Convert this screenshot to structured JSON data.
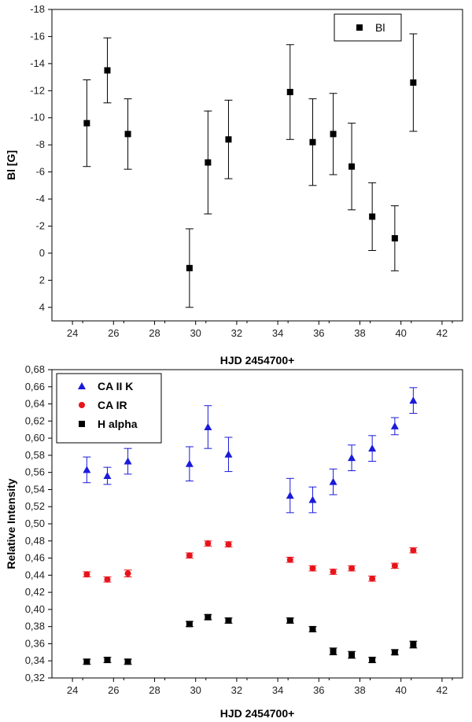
{
  "chart_data": [
    {
      "type": "scatter",
      "panel": "top",
      "title": "",
      "xlabel": "HJD 2454700+",
      "ylabel": "Bl [G]",
      "xlim": [
        23,
        43
      ],
      "ylim": [
        5,
        -18
      ],
      "y_inverted": true,
      "xticks": [
        24,
        26,
        28,
        30,
        32,
        34,
        36,
        38,
        40,
        42
      ],
      "yticks": [
        4,
        2,
        0,
        -2,
        -4,
        -6,
        -8,
        -10,
        -12,
        -14,
        -16,
        -18
      ],
      "legend_position": "top-right",
      "series": [
        {
          "name": "Bl",
          "marker": "square",
          "color": "#000000",
          "x": [
            24.7,
            25.7,
            26.7,
            29.7,
            30.6,
            31.6,
            34.6,
            35.7,
            36.7,
            37.6,
            38.6,
            39.7,
            40.6
          ],
          "y": [
            -9.6,
            -13.5,
            -8.8,
            1.1,
            -6.7,
            -8.4,
            -11.9,
            -8.2,
            -8.8,
            -6.4,
            -2.7,
            -1.1,
            -12.6
          ],
          "err": [
            3.2,
            2.4,
            2.6,
            2.9,
            3.8,
            2.9,
            3.5,
            3.2,
            3.0,
            3.2,
            2.5,
            2.4,
            3.6
          ]
        }
      ]
    },
    {
      "type": "scatter",
      "panel": "bottom",
      "title": "",
      "xlabel": "HJD 2454700+",
      "ylabel": "Relative Intensity",
      "xlim": [
        23,
        43
      ],
      "ylim": [
        0.32,
        0.68
      ],
      "xticks": [
        24,
        26,
        28,
        30,
        32,
        34,
        36,
        38,
        40,
        42
      ],
      "yticks": [
        "0,32",
        "0,34",
        "0,36",
        "0,38",
        "0,40",
        "0,42",
        "0,44",
        "0,46",
        "0,48",
        "0,50",
        "0,52",
        "0,54",
        "0,56",
        "0,58",
        "0,60",
        "0,62",
        "0,64",
        "0,66",
        "0,68"
      ],
      "legend_position": "top-left",
      "series": [
        {
          "name": "CA II K",
          "marker": "triangle",
          "color": "#1a1adb",
          "x": [
            24.7,
            25.7,
            26.7,
            29.7,
            30.6,
            31.6,
            34.6,
            35.7,
            36.7,
            37.6,
            38.6,
            39.7,
            40.6
          ],
          "y": [
            0.563,
            0.556,
            0.573,
            0.57,
            0.613,
            0.581,
            0.533,
            0.528,
            0.549,
            0.577,
            0.588,
            0.614,
            0.644
          ],
          "err": [
            0.015,
            0.01,
            0.015,
            0.02,
            0.025,
            0.02,
            0.02,
            0.015,
            0.015,
            0.015,
            0.015,
            0.01,
            0.015
          ]
        },
        {
          "name": "CA IR",
          "marker": "circle",
          "color": "#e8141c",
          "x": [
            24.7,
            25.7,
            26.7,
            29.7,
            30.6,
            31.6,
            34.6,
            35.7,
            36.7,
            37.6,
            38.6,
            39.7,
            40.6
          ],
          "y": [
            0.441,
            0.435,
            0.442,
            0.463,
            0.477,
            0.476,
            0.458,
            0.448,
            0.444,
            0.448,
            0.436,
            0.451,
            0.469
          ],
          "err": [
            0.003,
            0.003,
            0.004,
            0.003,
            0.003,
            0.003,
            0.003,
            0.003,
            0.003,
            0.003,
            0.003,
            0.003,
            0.003
          ]
        },
        {
          "name": "H alpha",
          "marker": "square",
          "color": "#000000",
          "x": [
            24.7,
            25.7,
            26.7,
            29.7,
            30.6,
            31.6,
            34.6,
            35.7,
            36.7,
            37.6,
            38.6,
            39.7,
            40.6
          ],
          "y": [
            0.339,
            0.341,
            0.339,
            0.383,
            0.391,
            0.387,
            0.387,
            0.377,
            0.351,
            0.347,
            0.341,
            0.35,
            0.359
          ],
          "err": [
            0.003,
            0.003,
            0.003,
            0.003,
            0.003,
            0.003,
            0.003,
            0.003,
            0.004,
            0.004,
            0.003,
            0.003,
            0.004
          ]
        }
      ]
    }
  ]
}
